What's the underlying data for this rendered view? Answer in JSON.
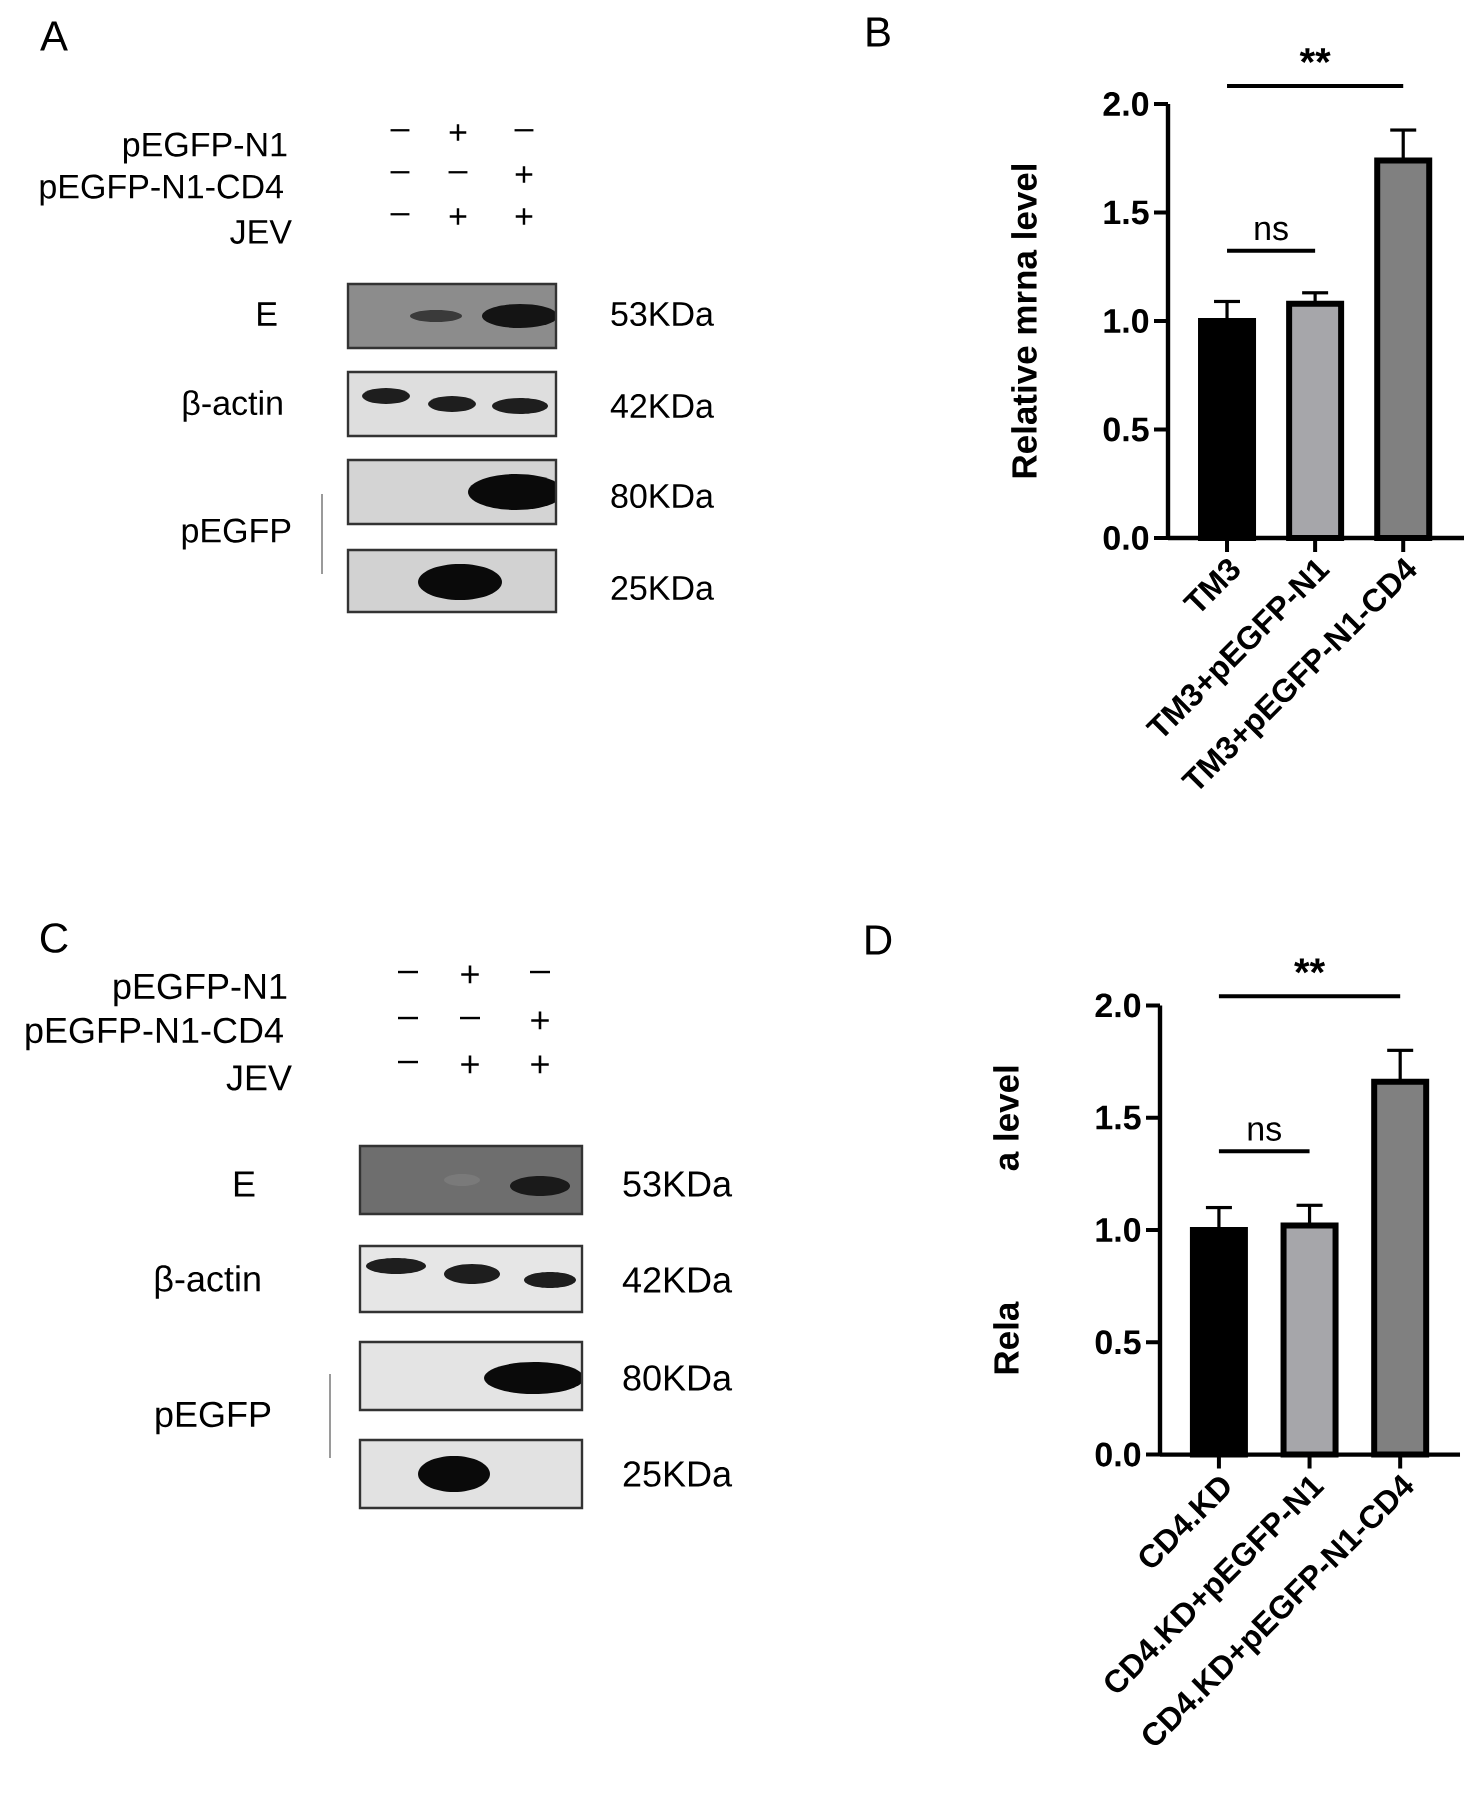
{
  "chart_data": [
    {
      "type": "other",
      "title": "A",
      "annotations": [
        "pEGFP-N1",
        "pEGFP-N1-CD4",
        "JEV",
        "–",
        "+",
        "–",
        "–",
        "–",
        "+",
        "–",
        "+",
        "+",
        "E",
        "β-actin",
        "pEGFP",
        "53KDa",
        "42KDa",
        "80KDa",
        "25KDa"
      ]
    },
    {
      "type": "bar",
      "title": "B",
      "ylabel": "Relative mrna level",
      "categories": [
        "TM3",
        "TM3+pEGFP-N1",
        "TM3+pEGFP-N1-CD4"
      ],
      "values": [
        1.0,
        1.08,
        1.74
      ],
      "colors": [
        "#000000",
        "#a6a6aa",
        "#808080"
      ],
      "errors": [
        [
          1.0,
          1.09
        ],
        [
          1.08,
          1.13
        ],
        [
          1.74,
          1.88
        ]
      ],
      "ylim": [
        0,
        2
      ],
      "yticks": [
        {
          "value": 0,
          "label": "0.0"
        },
        {
          "value": 0.5,
          "label": "0.5"
        },
        {
          "value": 1,
          "label": "1.0"
        },
        {
          "value": 1.5,
          "label": "1.5"
        },
        {
          "value": 2,
          "label": "2.0"
        }
      ],
      "annotations": [
        "ns",
        "**"
      ]
    },
    {
      "type": "other",
      "title": "C",
      "annotations": [
        "pEGFP-N1",
        "pEGFP-N1-CD4",
        "JEV",
        "–",
        "+",
        "–",
        "–",
        "–",
        "+",
        "–",
        "+",
        "+",
        "E",
        "β-actin",
        "pEGFP",
        "53KDa",
        "42KDa",
        "80KDa",
        "25KDa"
      ]
    },
    {
      "type": "bar",
      "title": "D",
      "ylabel": "Rela",
      "categories": [
        "CD4.KD",
        "CD4.KD+pEGFP-N1",
        "CD4.KD+pEGFP-N1-CD4"
      ],
      "values": [
        1.0,
        1.02,
        1.66
      ],
      "colors": [
        "#000000",
        "#a6a6aa",
        "#808080"
      ],
      "errors": [
        [
          1.0,
          1.1
        ],
        [
          1.02,
          1.11
        ],
        [
          1.66,
          1.8
        ]
      ],
      "ylim": [
        0,
        2
      ],
      "yticks": [
        {
          "value": 0,
          "label": "0.0"
        },
        {
          "value": 0.5,
          "label": "0.5"
        },
        {
          "value": 1,
          "label": "1.0"
        },
        {
          "value": 1.5,
          "label": "1.5"
        },
        {
          "value": 2,
          "label": "2.0"
        }
      ],
      "annotations": [
        "ns",
        "**",
        "a level"
      ]
    }
  ]
}
